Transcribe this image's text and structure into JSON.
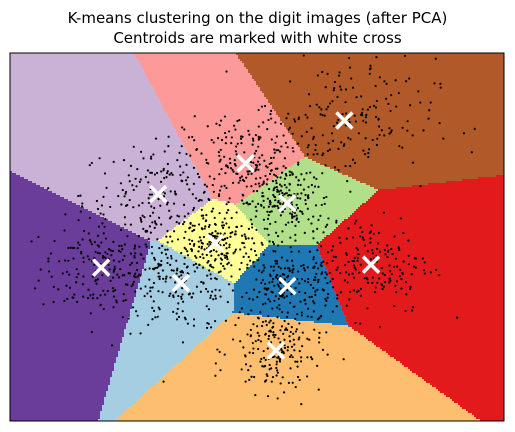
{
  "chart_data": {
    "type": "scatter",
    "title": "K-means clustering on the digit images (after PCA)",
    "subtitle": "Centroids are marked with white cross",
    "xlabel": "",
    "ylabel": "",
    "axes_visible": false,
    "xlim": [
      -30.0,
      35.0
    ],
    "ylim": [
      -30.0,
      30.0
    ],
    "colors": {
      "region_colormap": "Paired",
      "points": "#000000",
      "centroids": "#ffffff",
      "frame": "#000000"
    },
    "centroids": [
      {
        "x": -18.0,
        "y": -5.0,
        "region_color": "#6a3d9a"
      },
      {
        "x": -10.5,
        "y": 7.0,
        "region_color": "#cab2d6"
      },
      {
        "x": -7.5,
        "y": -7.5,
        "region_color": "#a6cee3"
      },
      {
        "x": -3.0,
        "y": -1.0,
        "region_color": "#ffff99"
      },
      {
        "x": 1.0,
        "y": 12.0,
        "region_color": "#fb9a99"
      },
      {
        "x": 6.5,
        "y": 5.5,
        "region_color": "#b2df8a"
      },
      {
        "x": 6.5,
        "y": -8.0,
        "region_color": "#1f78b4"
      },
      {
        "x": 5.0,
        "y": -18.5,
        "region_color": "#fdbf6f"
      },
      {
        "x": 14.0,
        "y": 19.0,
        "region_color": "#b15928"
      },
      {
        "x": 17.5,
        "y": -4.5,
        "region_color": "#e31a1c"
      }
    ]
  }
}
